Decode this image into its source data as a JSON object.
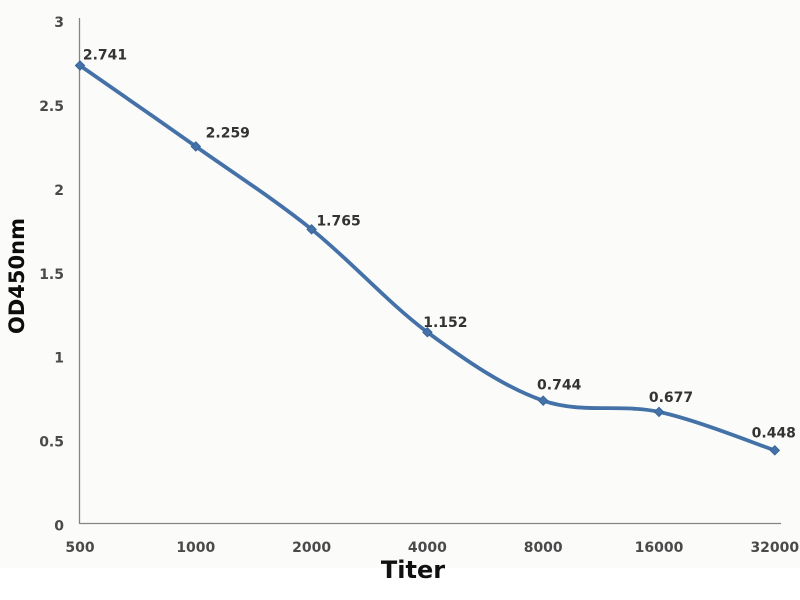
{
  "chart_data": {
    "type": "line",
    "title": "",
    "xlabel": "Titer",
    "ylabel": "OD450nm",
    "categories": [
      "500",
      "1000",
      "2000",
      "4000",
      "8000",
      "16000",
      "32000"
    ],
    "x": [
      500,
      1000,
      2000,
      4000,
      8000,
      16000,
      32000
    ],
    "values": [
      2.741,
      2.259,
      1.765,
      1.152,
      0.744,
      0.677,
      0.448
    ],
    "point_labels": [
      "2.741",
      "2.259",
      "1.765",
      "1.152",
      "0.744",
      "0.677",
      "0.448"
    ],
    "y_ticks": [
      0,
      0.5,
      1,
      1.5,
      2,
      2.5,
      3
    ],
    "y_tick_labels": [
      "0",
      "0.5",
      "1",
      "1.5",
      "2",
      "2.5",
      "3"
    ],
    "ylim": [
      0,
      3
    ],
    "x_scale": "log2-categorical",
    "grid": false,
    "legend": null,
    "marker": "diamond",
    "smooth": true,
    "colors": {
      "line": "#4472a8",
      "marker_stroke": "#38659b",
      "axis": "#858585",
      "tick_text": "#4a4a4a",
      "label_text": "#333333",
      "background": "#fbfbfa"
    }
  }
}
